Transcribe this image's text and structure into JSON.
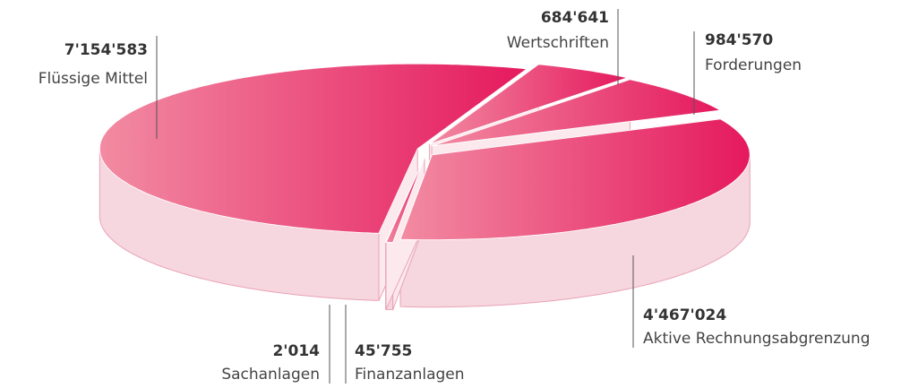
{
  "chart_data": {
    "type": "pie3d",
    "categories": [
      "Flüssige Mittel",
      "Wertschriften",
      "Forderungen",
      "Aktive Rechnungsabgrenzung",
      "Finanzanlagen",
      "Sachanlagen"
    ],
    "values": [
      7154583,
      684641,
      984570,
      4467024,
      45755,
      2014
    ],
    "value_labels": [
      "7'154'583",
      "684'641",
      "984'570",
      "4'467'024",
      "45'755",
      "2'014"
    ],
    "gradient": [
      "#f28ba2",
      "#e5195e"
    ]
  }
}
